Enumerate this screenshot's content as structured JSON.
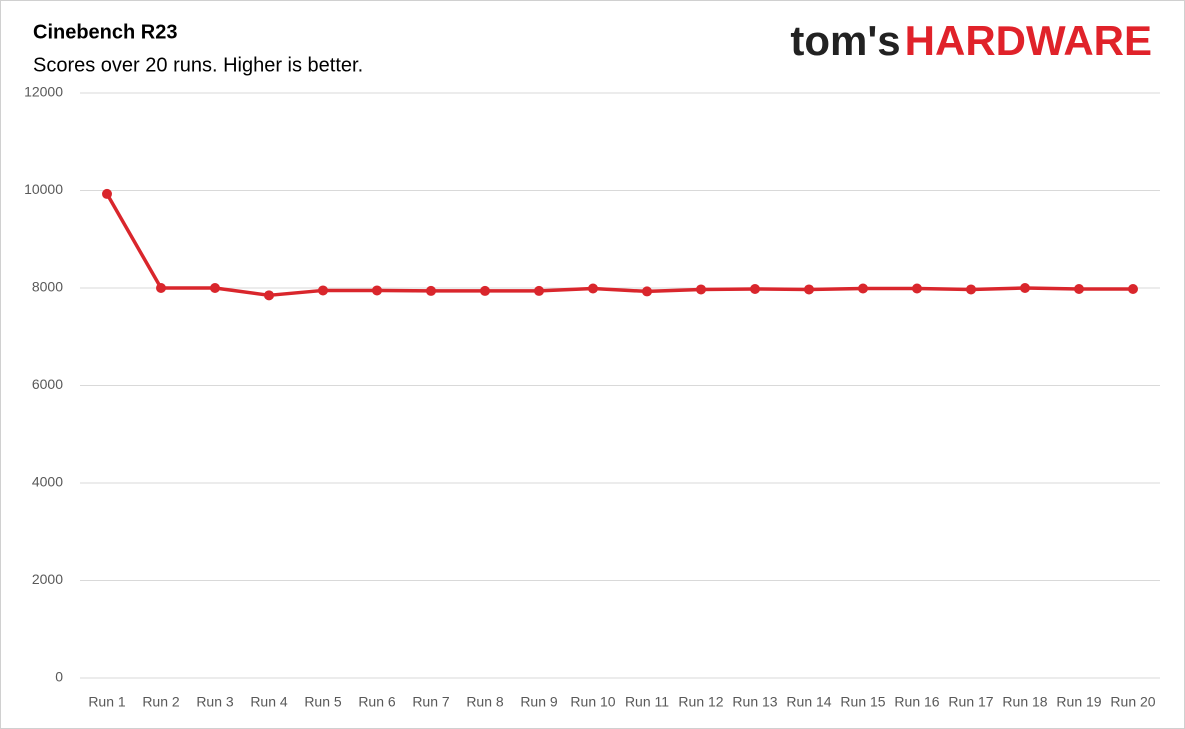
{
  "chart_data": {
    "type": "line",
    "title": "Cinebench R23",
    "subtitle": "Scores over 20 runs. Higher is better.",
    "logo": {
      "left": "tom's",
      "right": "HARDWARE"
    },
    "categories": [
      "Run 1",
      "Run 2",
      "Run 3",
      "Run 4",
      "Run 5",
      "Run 6",
      "Run 7",
      "Run 8",
      "Run 9",
      "Run 10",
      "Run 11",
      "Run 12",
      "Run 13",
      "Run 14",
      "Run 15",
      "Run 16",
      "Run 17",
      "Run 18",
      "Run 19",
      "Run 20"
    ],
    "series": [
      {
        "color": "#d9262c",
        "values": [
          9930,
          8000,
          8000,
          7850,
          7950,
          7950,
          7940,
          7940,
          7940,
          7990,
          7930,
          7970,
          7980,
          7970,
          7990,
          7990,
          7970,
          8000,
          7980,
          7980
        ]
      }
    ],
    "ylim": [
      0,
      12000
    ],
    "yticks": [
      0,
      2000,
      4000,
      6000,
      8000,
      10000,
      12000
    ],
    "grid": true
  }
}
